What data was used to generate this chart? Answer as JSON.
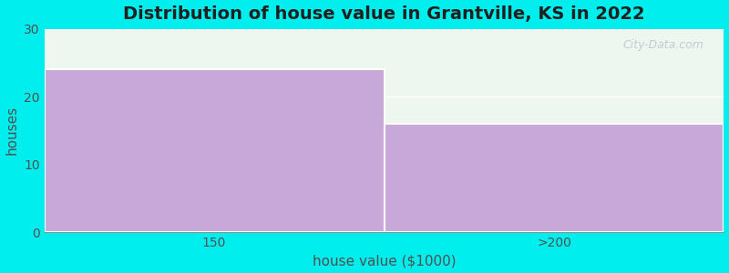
{
  "categories": [
    "150",
    ">200"
  ],
  "values": [
    24,
    16
  ],
  "bar_color": "#c8a8d8",
  "title": "Distribution of house value in Grantville, KS in 2022",
  "xlabel": "house value ($1000)",
  "ylabel": "houses",
  "ylim": [
    0,
    30
  ],
  "yticks": [
    0,
    10,
    20,
    30
  ],
  "background_color": "#00eeee",
  "plot_bg_color": "#edf7f0",
  "title_fontsize": 14,
  "axis_label_fontsize": 11,
  "tick_fontsize": 10,
  "watermark": "City-Data.com"
}
